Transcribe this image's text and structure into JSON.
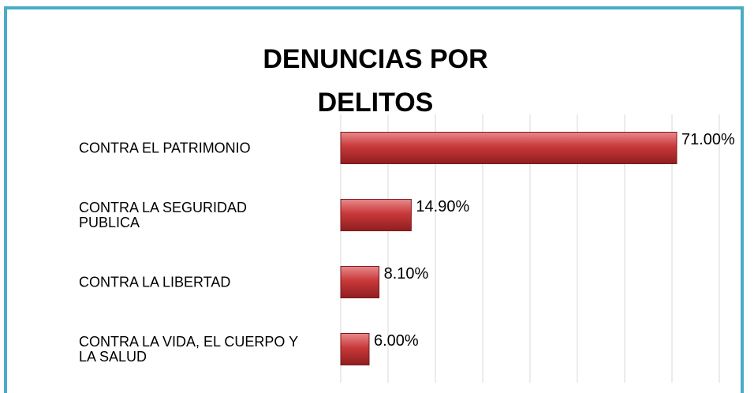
{
  "chart_data": {
    "type": "bar",
    "orientation": "horizontal",
    "title": [
      "DENUNCIAS POR",
      "DELITOS"
    ],
    "categories": [
      "CONTRA EL PATRIMONIO",
      "CONTRA LA SEGURIDAD PUBLICA",
      "CONTRA LA LIBERTAD",
      "CONTRA LA VIDA, EL CUERPO Y LA SALUD"
    ],
    "values": [
      71.0,
      14.9,
      8.1,
      6.0
    ],
    "value_labels": [
      "71.00%",
      "14.90%",
      "8.10%",
      "6.00%"
    ],
    "color": "#c0393b",
    "xlim": [
      0,
      80
    ],
    "xticks": [
      0,
      10,
      20,
      30,
      40,
      50,
      60,
      70,
      80
    ],
    "grid": true
  }
}
